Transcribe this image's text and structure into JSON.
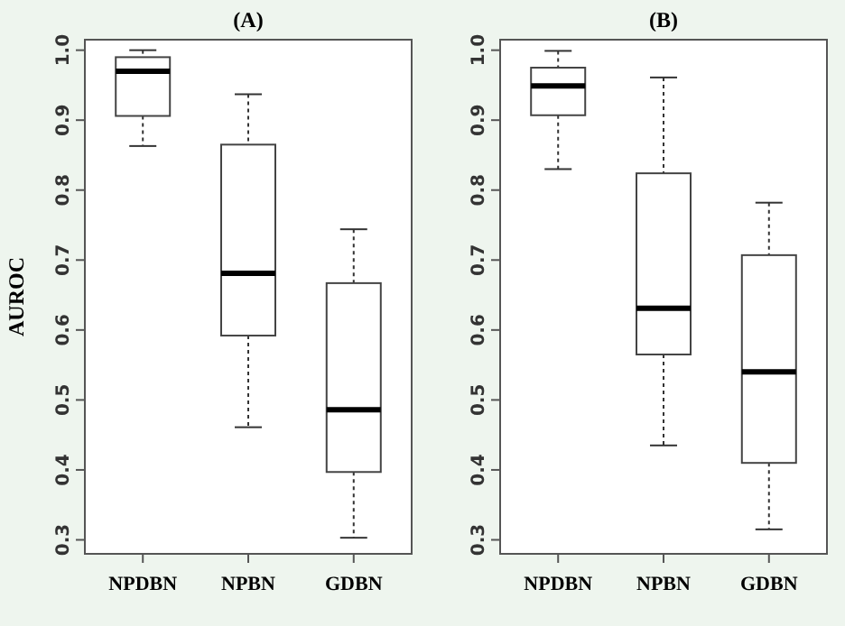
{
  "chart_data": [
    {
      "type": "box",
      "title": "(A)",
      "ylabel": "AUROC",
      "categories": [
        "NPDBN",
        "NPBN",
        "GDBN"
      ],
      "ylim": [
        0.28,
        1.015
      ],
      "yticks": [
        0.3,
        0.4,
        0.5,
        0.6,
        0.7,
        0.8,
        0.9,
        {
          "value": 1,
          "label": "1.0"
        }
      ],
      "boxes": [
        {
          "low": 0.863,
          "q1": 0.906,
          "median": 0.97,
          "q3": 0.99,
          "high": 1.0
        },
        {
          "low": 0.461,
          "q1": 0.592,
          "median": 0.681,
          "q3": 0.865,
          "high": 0.937
        },
        {
          "low": 0.303,
          "q1": 0.397,
          "median": 0.486,
          "q3": 0.667,
          "high": 0.744
        }
      ]
    },
    {
      "type": "box",
      "title": "(B)",
      "categories": [
        "NPDBN",
        "NPBN",
        "GDBN"
      ],
      "ylim": [
        0.28,
        1.015
      ],
      "yticks": [
        0.3,
        0.4,
        0.5,
        0.6,
        0.7,
        0.8,
        0.9,
        {
          "value": 1,
          "label": "1.0"
        }
      ],
      "boxes": [
        {
          "low": 0.83,
          "q1": 0.907,
          "median": 0.949,
          "q3": 0.975,
          "high": 0.999
        },
        {
          "low": 0.435,
          "q1": 0.565,
          "median": 0.631,
          "q3": 0.824,
          "high": 0.961
        },
        {
          "low": 0.315,
          "q1": 0.41,
          "median": 0.54,
          "q3": 0.707,
          "high": 0.782
        }
      ]
    }
  ]
}
